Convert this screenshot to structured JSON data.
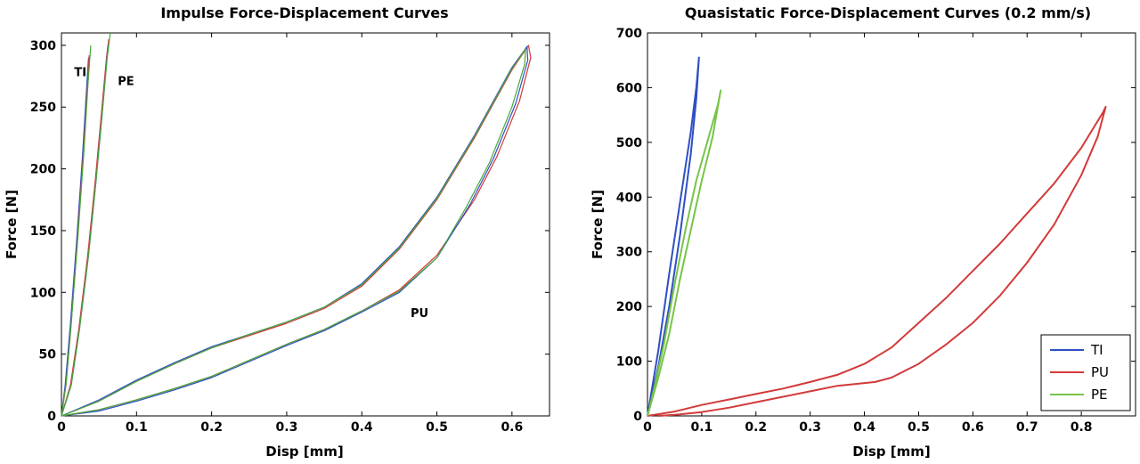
{
  "chart_data": [
    {
      "type": "line",
      "title": "Impulse Force-Displacement Curves",
      "xlabel": "Disp [mm]",
      "ylabel": "Force [N]",
      "xlim": [
        0,
        0.65
      ],
      "ylim": [
        0,
        310
      ],
      "xticks": [
        0,
        0.1,
        0.2,
        0.3,
        0.4,
        0.5,
        0.6
      ],
      "xtick_labels": [
        "0",
        "0.1",
        "0.2",
        "0.3",
        "0.4",
        "0.5",
        "0.6"
      ],
      "yticks": [
        0,
        50,
        100,
        150,
        200,
        250,
        300
      ],
      "ytick_labels": [
        "0",
        "50",
        "100",
        "150",
        "200",
        "250",
        "300"
      ],
      "grid": false,
      "legend": null,
      "annotations": [
        {
          "text": "TI",
          "x": 0.017,
          "y": 275
        },
        {
          "text": "PE",
          "x": 0.075,
          "y": 268
        },
        {
          "text": "PU",
          "x": 0.465,
          "y": 80
        }
      ],
      "series": [
        {
          "color": "#2f4fc4",
          "points": [
            [
              0,
              0
            ],
            [
              0.005,
              25
            ],
            [
              0.012,
              75
            ],
            [
              0.02,
              140
            ],
            [
              0.028,
              210
            ],
            [
              0.033,
              260
            ],
            [
              0.036,
              290
            ]
          ]
        },
        {
          "color": "#d23a3a",
          "points": [
            [
              0,
              0
            ],
            [
              0.006,
              25
            ],
            [
              0.013,
              75
            ],
            [
              0.021,
              140
            ],
            [
              0.029,
              210
            ],
            [
              0.034,
              260
            ],
            [
              0.037,
              292
            ]
          ]
        },
        {
          "color": "#4aa83c",
          "points": [
            [
              0,
              0
            ],
            [
              0.006,
              25
            ],
            [
              0.013,
              75
            ],
            [
              0.022,
              145
            ],
            [
              0.03,
              215
            ],
            [
              0.035,
              265
            ],
            [
              0.039,
              300
            ]
          ]
        },
        {
          "color": "#d23a3a",
          "points": [
            [
              0,
              0
            ],
            [
              0.012,
              25
            ],
            [
              0.023,
              70
            ],
            [
              0.035,
              130
            ],
            [
              0.045,
              190
            ],
            [
              0.054,
              250
            ],
            [
              0.06,
              290
            ],
            [
              0.063,
              305
            ]
          ]
        },
        {
          "color": "#2f4fc4",
          "points": [
            [
              0,
              0
            ],
            [
              0.013,
              25
            ],
            [
              0.024,
              70
            ],
            [
              0.036,
              130
            ],
            [
              0.046,
              190
            ],
            [
              0.055,
              250
            ],
            [
              0.06,
              285
            ],
            [
              0.062,
              300
            ]
          ]
        },
        {
          "color": "#4aa83c",
          "points": [
            [
              0,
              0
            ],
            [
              0.013,
              25
            ],
            [
              0.024,
              70
            ],
            [
              0.036,
              130
            ],
            [
              0.046,
              190
            ],
            [
              0.055,
              250
            ],
            [
              0.061,
              290
            ],
            [
              0.065,
              310
            ]
          ]
        },
        {
          "color": "#d23a3a",
          "points": [
            [
              0,
              0
            ],
            [
              0.05,
              12
            ],
            [
              0.1,
              28
            ],
            [
              0.15,
              42
            ],
            [
              0.2,
              55
            ],
            [
              0.25,
              65
            ],
            [
              0.3,
              75
            ],
            [
              0.35,
              87
            ],
            [
              0.4,
              105
            ],
            [
              0.45,
              135
            ],
            [
              0.5,
              175
            ],
            [
              0.55,
              225
            ],
            [
              0.6,
              280
            ],
            [
              0.622,
              300
            ],
            [
              0.625,
              290
            ],
            [
              0.61,
              255
            ],
            [
              0.58,
              210
            ],
            [
              0.55,
              175
            ],
            [
              0.5,
              130
            ],
            [
              0.45,
              102
            ],
            [
              0.4,
              85
            ],
            [
              0.35,
              70
            ],
            [
              0.3,
              58
            ],
            [
              0.25,
              45
            ],
            [
              0.2,
              32
            ],
            [
              0.15,
              22
            ],
            [
              0.1,
              13
            ],
            [
              0.05,
              5
            ],
            [
              0,
              0
            ]
          ]
        },
        {
          "color": "#2f4fc4",
          "points": [
            [
              0,
              0
            ],
            [
              0.05,
              13
            ],
            [
              0.1,
              29
            ],
            [
              0.15,
              43
            ],
            [
              0.2,
              56
            ],
            [
              0.25,
              66
            ],
            [
              0.3,
              76
            ],
            [
              0.35,
              88
            ],
            [
              0.4,
              107
            ],
            [
              0.45,
              137
            ],
            [
              0.5,
              177
            ],
            [
              0.55,
              227
            ],
            [
              0.6,
              282
            ],
            [
              0.62,
              299
            ],
            [
              0.621,
              288
            ],
            [
              0.605,
              253
            ],
            [
              0.575,
              208
            ],
            [
              0.545,
              172
            ],
            [
              0.5,
              128
            ],
            [
              0.45,
              100
            ],
            [
              0.4,
              84
            ],
            [
              0.35,
              69
            ],
            [
              0.3,
              57
            ],
            [
              0.25,
              44
            ],
            [
              0.2,
              31
            ],
            [
              0.15,
              21
            ],
            [
              0.1,
              12
            ],
            [
              0.05,
              4
            ],
            [
              0,
              0
            ]
          ]
        },
        {
          "color": "#4aa83c",
          "points": [
            [
              0,
              0
            ],
            [
              0.05,
              12
            ],
            [
              0.1,
              28
            ],
            [
              0.15,
              42
            ],
            [
              0.2,
              55
            ],
            [
              0.25,
              66
            ],
            [
              0.3,
              76
            ],
            [
              0.35,
              88
            ],
            [
              0.4,
              106
            ],
            [
              0.45,
              136
            ],
            [
              0.5,
              176
            ],
            [
              0.55,
              226
            ],
            [
              0.6,
              281
            ],
            [
              0.618,
              297
            ],
            [
              0.617,
              285
            ],
            [
              0.6,
              250
            ],
            [
              0.57,
              205
            ],
            [
              0.54,
              170
            ],
            [
              0.5,
              128
            ],
            [
              0.45,
              101
            ],
            [
              0.4,
              85
            ],
            [
              0.35,
              70
            ],
            [
              0.3,
              58
            ],
            [
              0.25,
              45
            ],
            [
              0.2,
              32
            ],
            [
              0.15,
              22
            ],
            [
              0.1,
              13
            ],
            [
              0.05,
              5
            ],
            [
              0,
              0
            ]
          ]
        }
      ]
    },
    {
      "type": "line",
      "title": "Quasistatic Force-Displacement Curves (0.2 mm/s)",
      "xlabel": "Disp [mm]",
      "ylabel": "Force [N]",
      "xlim": [
        0,
        0.9
      ],
      "ylim": [
        0,
        700
      ],
      "xticks": [
        0,
        0.1,
        0.2,
        0.3,
        0.4,
        0.5,
        0.6,
        0.7,
        0.8
      ],
      "xtick_labels": [
        "0",
        "0.1",
        "0.2",
        "0.3",
        "0.4",
        "0.5",
        "0.6",
        "0.7",
        "0.8"
      ],
      "yticks": [
        0,
        100,
        200,
        300,
        400,
        500,
        600,
        700
      ],
      "ytick_labels": [
        "0",
        "100",
        "200",
        "300",
        "400",
        "500",
        "600",
        "700"
      ],
      "grid": false,
      "legend": "bottom-right",
      "series": [
        {
          "name": "TI",
          "color": "#2f4fc4",
          "points": [
            [
              0,
              0
            ],
            [
              0.02,
              90
            ],
            [
              0.04,
              200
            ],
            [
              0.06,
              330
            ],
            [
              0.08,
              480
            ],
            [
              0.09,
              580
            ],
            [
              0.095,
              655
            ],
            [
              0.09,
              600
            ],
            [
              0.08,
              520
            ],
            [
              0.06,
              390
            ],
            [
              0.04,
              260
            ],
            [
              0.02,
              120
            ],
            [
              0,
              0
            ]
          ]
        },
        {
          "name": "PU",
          "color": "#d23a3a",
          "points": [
            [
              0,
              0
            ],
            [
              0.05,
              8
            ],
            [
              0.1,
              20
            ],
            [
              0.15,
              30
            ],
            [
              0.2,
              40
            ],
            [
              0.25,
              50
            ],
            [
              0.3,
              62
            ],
            [
              0.35,
              75
            ],
            [
              0.4,
              95
            ],
            [
              0.45,
              125
            ],
            [
              0.5,
              170
            ],
            [
              0.55,
              215
            ],
            [
              0.6,
              265
            ],
            [
              0.65,
              315
            ],
            [
              0.7,
              370
            ],
            [
              0.75,
              425
            ],
            [
              0.8,
              490
            ],
            [
              0.84,
              555
            ],
            [
              0.845,
              565
            ],
            [
              0.83,
              510
            ],
            [
              0.8,
              440
            ],
            [
              0.75,
              350
            ],
            [
              0.7,
              280
            ],
            [
              0.65,
              220
            ],
            [
              0.6,
              170
            ],
            [
              0.55,
              130
            ],
            [
              0.5,
              95
            ],
            [
              0.45,
              70
            ],
            [
              0.42,
              62
            ],
            [
              0.4,
              60
            ],
            [
              0.35,
              55
            ],
            [
              0.3,
              45
            ],
            [
              0.25,
              35
            ],
            [
              0.2,
              25
            ],
            [
              0.15,
              15
            ],
            [
              0.1,
              7
            ],
            [
              0.05,
              2
            ],
            [
              0.02,
              0
            ]
          ]
        },
        {
          "name": "PE",
          "color": "#77c447",
          "points": [
            [
              0,
              0
            ],
            [
              0.02,
              70
            ],
            [
              0.04,
              150
            ],
            [
              0.06,
              250
            ],
            [
              0.08,
              340
            ],
            [
              0.1,
              430
            ],
            [
              0.12,
              510
            ],
            [
              0.135,
              595
            ],
            [
              0.13,
              570
            ],
            [
              0.11,
              500
            ],
            [
              0.09,
              430
            ],
            [
              0.07,
              340
            ],
            [
              0.05,
              240
            ],
            [
              0.03,
              130
            ],
            [
              0.01,
              40
            ],
            [
              0,
              0
            ]
          ]
        }
      ]
    }
  ]
}
